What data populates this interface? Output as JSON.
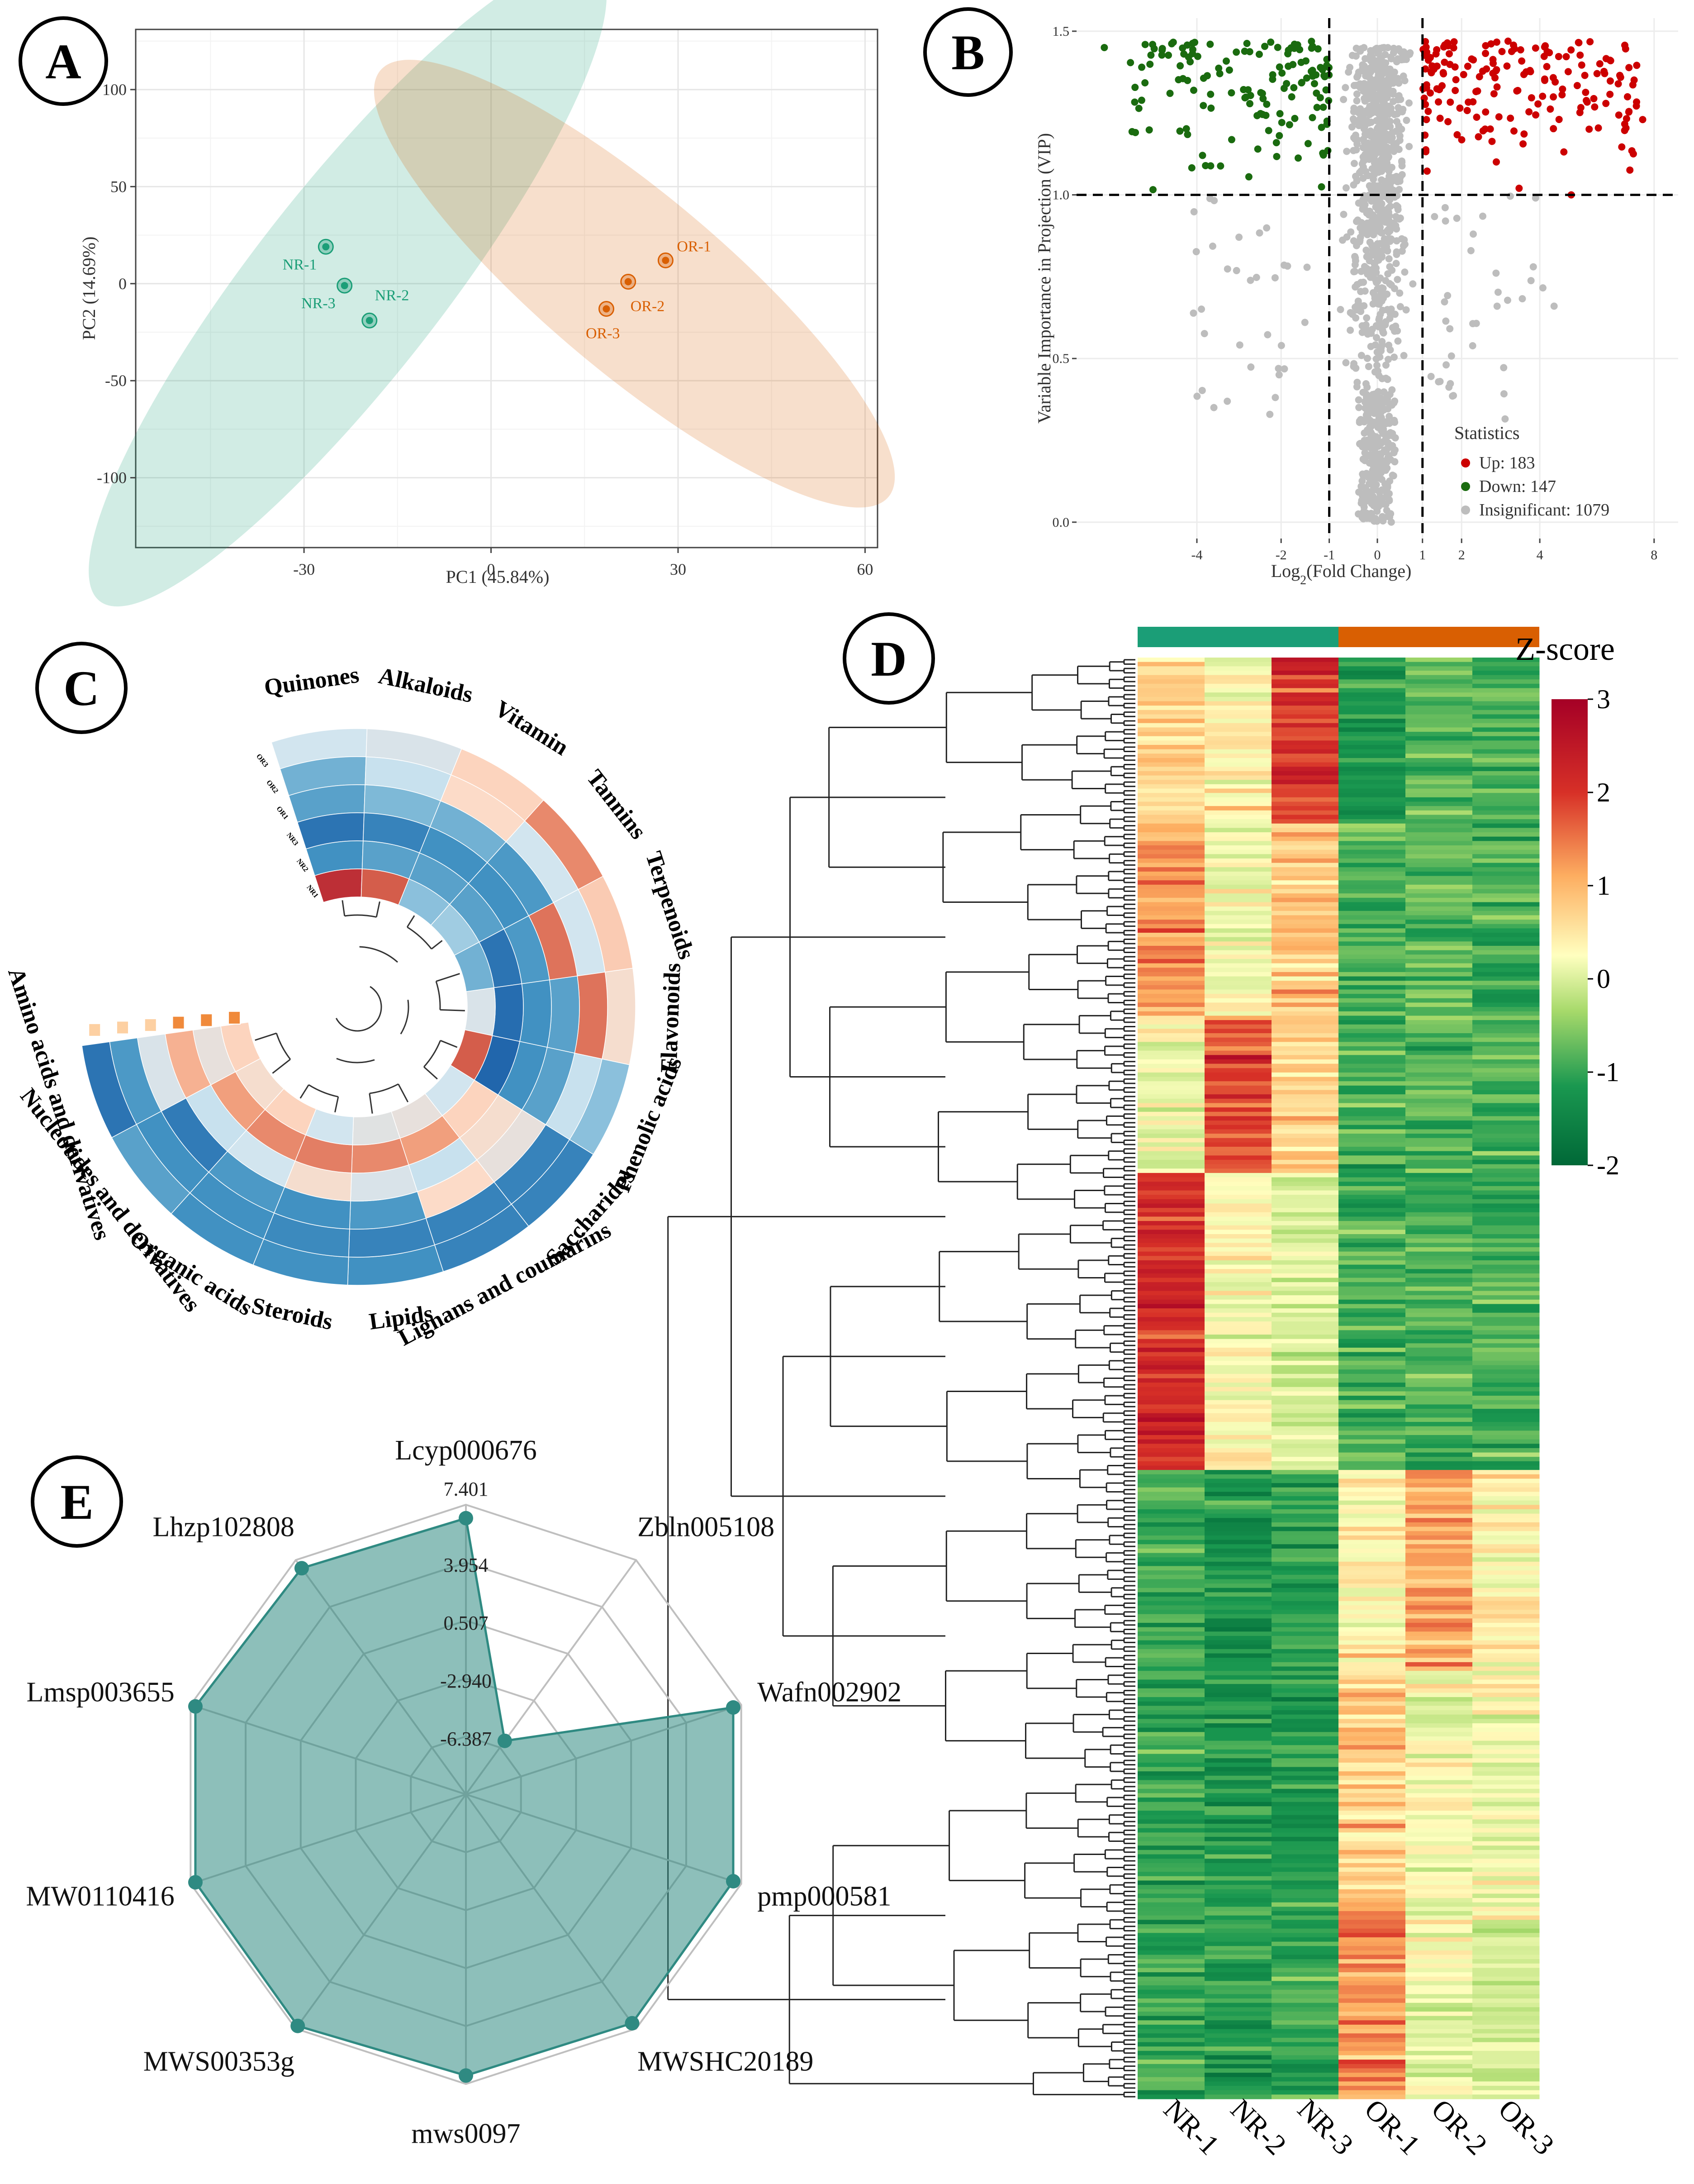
{
  "panels": {
    "A": {
      "letter": "A",
      "chart_data": {
        "type": "scatter",
        "xlabel": "PC1 (45.84%)",
        "ylabel": "PC2 (14.69%)",
        "xlim": [
          -57,
          62
        ],
        "ylim": [
          -136,
          131
        ],
        "xticks": [
          -30,
          0,
          30,
          60
        ],
        "yticks": [
          100,
          50,
          0,
          -50,
          -100
        ],
        "grid": true,
        "groups": [
          {
            "name": "NR",
            "color": "#1b9e77",
            "points": [
              {
                "label": "NR-1",
                "x": -26.5,
                "y": 19
              },
              {
                "label": "NR-3",
                "x": -23.5,
                "y": -1
              },
              {
                "label": "NR-2",
                "x": -19.5,
                "y": -19
              }
            ],
            "ellipse": {
              "cx": -23,
              "cy": 0,
              "rx": 68,
              "ry": 16,
              "angle": -52
            }
          },
          {
            "name": "OR",
            "color": "#d95f02",
            "points": [
              {
                "label": "OR-1",
                "x": 28,
                "y": 12
              },
              {
                "label": "OR-2",
                "x": 22,
                "y": 1
              },
              {
                "label": "OR-3",
                "x": 18.5,
                "y": -13
              }
            ],
            "ellipse": {
              "cx": 23,
              "cy": 0,
              "rx": 56,
              "ry": 15,
              "angle": 40
            }
          }
        ]
      }
    },
    "B": {
      "letter": "B",
      "chart_data": {
        "type": "scatter",
        "xlabel": "Log",
        "xlabel_sub": "2",
        "xlabel_tail": "(Fold Change)",
        "ylabel": "Variable Importance in Projection (VIP)",
        "xlim": [
          -7.9,
          8
        ],
        "ylim": [
          -0.05,
          1.54
        ],
        "xticks": [
          -4,
          -2,
          -1,
          0,
          1,
          2,
          4,
          8
        ],
        "yticks": [
          0.0,
          0.5,
          1.0,
          1.5
        ],
        "thresholds": {
          "vip": 1.0,
          "fc": [
            -1,
            1
          ]
        },
        "legend_title": "Statistics",
        "legend": [
          {
            "label": "Up: 183",
            "color": "#cc0000",
            "count": 183
          },
          {
            "label": "Down: 147",
            "color": "#1a6b0f",
            "count": 147
          },
          {
            "label": "Insignificant: 1079",
            "color": "#bdbdbd",
            "count": 1079
          }
        ],
        "sample_outliers": [
          {
            "x": 7.6,
            "y": 1.23,
            "group": "up"
          },
          {
            "x": 5.1,
            "y": 1.0,
            "group": "up"
          },
          {
            "x": -7.0,
            "y": 1.45,
            "group": "down"
          },
          {
            "x": 4.5,
            "y": 0.66,
            "group": "insignificant"
          }
        ]
      }
    },
    "C": {
      "letter": "C",
      "chart_data": {
        "type": "heatmap",
        "layout": "circular",
        "samples": [
          "OR3",
          "OR2",
          "OR1",
          "NR3",
          "NR2",
          "NR1"
        ],
        "categories": [
          "Quinones",
          "Alkaloids",
          "Vitamin",
          "Tannins",
          "Terpenoids",
          "Flavonoids",
          "Phenolic acids",
          "Saccharides",
          "Lignans and coumarins",
          "Lipids",
          "Steroids",
          "Organic acids",
          "Nucleotides and derivatives",
          "Amino acids and derivatives"
        ],
        "values": [
          [
            0.3,
            -0.6,
            -0.8,
            -1.4,
            -1.0,
            2.6
          ],
          [
            0.4,
            0.2,
            -0.5,
            -1.2,
            -0.8,
            2.2
          ],
          [
            1.0,
            0.9,
            -0.6,
            -1.0,
            -0.8,
            -0.4
          ],
          [
            1.8,
            0.3,
            -0.9,
            -1.0,
            -0.8,
            -0.2
          ],
          [
            1.1,
            0.3,
            2.0,
            -0.9,
            -1.4,
            -0.6
          ],
          [
            0.8,
            2.0,
            -0.8,
            -1.0,
            -1.5,
            0.4
          ],
          [
            -0.4,
            0.2,
            -0.8,
            -1.0,
            -1.6,
            2.2
          ],
          [
            -1.2,
            -1.2,
            0.6,
            0.8,
            1.0,
            0.3
          ],
          [
            -1.2,
            -1.2,
            0.9,
            0.2,
            1.6,
            0.6
          ],
          [
            -1.0,
            -1.2,
            -0.9,
            0.4,
            1.8,
            0.5
          ],
          [
            -1.0,
            -1.1,
            -1.0,
            0.8,
            1.9,
            0.3
          ],
          [
            -1.0,
            -1.0,
            -0.9,
            0.3,
            1.8,
            1.0
          ],
          [
            -0.8,
            -1.0,
            -1.3,
            0.2,
            1.6,
            0.8
          ],
          [
            -1.4,
            -0.9,
            0.4,
            1.4,
            0.6,
            1.0
          ]
        ]
      }
    },
    "D": {
      "letter": "D",
      "chart_data": {
        "type": "heatmap",
        "samples": [
          "NR-1",
          "NR-2",
          "NR-3",
          "OR-1",
          "OR-2",
          "OR-3"
        ],
        "group_colors": [
          "#1b9e77",
          "#d95f02"
        ],
        "legend_title": "Z-score",
        "scale": [
          -2,
          3
        ],
        "scale_ticks": [
          3,
          2,
          1,
          0,
          -1,
          -2
        ],
        "colormap": [
          "#006837",
          "#1a9850",
          "#a6d96a",
          "#ffffbf",
          "#fdae61",
          "#d73027",
          "#a50026"
        ],
        "row_clusters": [
          {
            "rows": 38,
            "values": [
              0.9,
              0.6,
              2.1,
              -1.2,
              -0.8,
              -0.9
            ]
          },
          {
            "rows": 44,
            "values": [
              1.5,
              0.4,
              1.1,
              -0.9,
              -0.8,
              -1.0
            ]
          },
          {
            "rows": 36,
            "values": [
              0.3,
              2.0,
              1.0,
              -0.9,
              -0.8,
              -0.9
            ]
          },
          {
            "rows": 68,
            "values": [
              2.3,
              0.5,
              0.1,
              -0.9,
              -0.9,
              -0.9
            ]
          },
          {
            "rows": 46,
            "values": [
              -1.0,
              -1.3,
              -1.1,
              0.6,
              1.4,
              0.6
            ]
          },
          {
            "rows": 50,
            "values": [
              -1.0,
              -1.2,
              -1.2,
              1.0,
              0.5,
              0.3
            ]
          },
          {
            "rows": 48,
            "values": [
              -1.0,
              -1.1,
              -1.0,
              1.5,
              0.3,
              0.2
            ]
          }
        ]
      }
    },
    "E": {
      "letter": "E",
      "chart_data": {
        "type": "radar",
        "axes": [
          "Lcyp000676",
          "Zbln005108",
          "Wafn002902",
          "pmp000581",
          "MWSHC20189",
          "mws0097",
          "MWS00353g",
          "MW0110416",
          "Lmsp003655",
          "Lhzp102808"
        ],
        "values": [
          6.6,
          -5.9,
          6.9,
          6.9,
          7.0,
          6.9,
          7.2,
          7.1,
          7.1,
          6.8
        ],
        "ring_labels": [
          "7.401",
          "3.954",
          "0.507",
          "-2.940",
          "-6.387"
        ],
        "range": [
          -9.834,
          7.401
        ],
        "fill_color": "#2f8a82"
      }
    }
  }
}
